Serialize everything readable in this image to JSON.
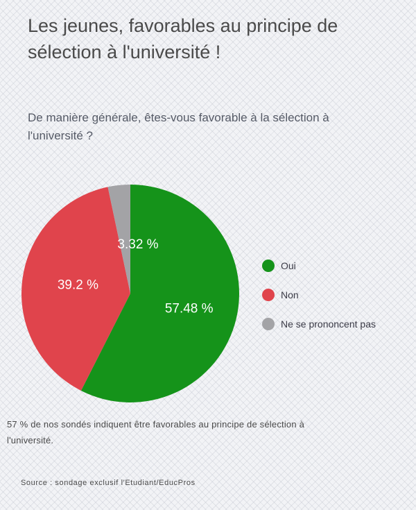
{
  "title": "Les jeunes, favorables au principe de sélection à l'université !",
  "question": "De manière générale, êtes-vous favorable à la sélection à l'université ?",
  "chart_data": {
    "type": "pie",
    "categories": [
      "Oui",
      "Non",
      "Ne se prononcent pas"
    ],
    "values": [
      57.48,
      39.2,
      3.32
    ],
    "labels": [
      "57.48 %",
      "39.2 %",
      "3.32 %"
    ],
    "colors": [
      "#15931a",
      "#e0444c",
      "#a3a3a6"
    ],
    "legend": "right"
  },
  "note": "57 % de nos sondés indiquent être favorables au principe de sélection à l'université.",
  "source": "Source : sondage exclusif l'Etudiant/EducPros"
}
